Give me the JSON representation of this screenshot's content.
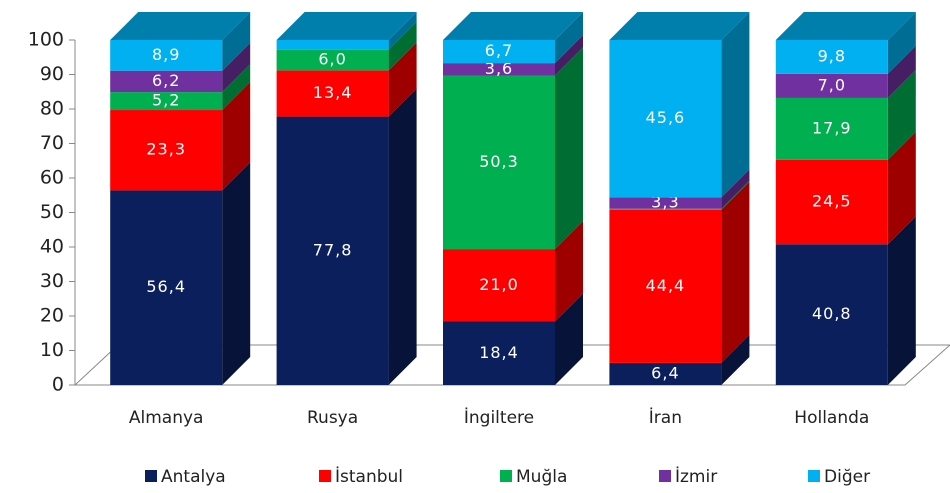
{
  "chart_data": {
    "type": "bar3d_stacked",
    "categories": [
      "Almanya",
      "Rusya",
      "İngiltere",
      "İran",
      "Hollanda"
    ],
    "series": [
      {
        "name": "Antalya",
        "color": "#0b1f5c",
        "values": [
          56.4,
          77.8,
          18.4,
          6.4,
          40.8
        ],
        "value_labels": [
          "56,4",
          "77,8",
          "18,4",
          "6,4",
          "40,8"
        ]
      },
      {
        "name": "İstanbul",
        "color": "#ff0000",
        "values": [
          23.3,
          13.4,
          21.0,
          44.4,
          24.5
        ],
        "value_labels": [
          "23,3",
          "13,4",
          "21,0",
          "44,4",
          "24,5"
        ]
      },
      {
        "name": "Muğla",
        "color": "#00b050",
        "values": [
          5.2,
          6.0,
          50.3,
          0.3,
          17.9
        ],
        "value_labels": [
          "5,2",
          "6,0",
          "50,3",
          null,
          "17,9"
        ]
      },
      {
        "name": "İzmir",
        "color": "#7030a0",
        "values": [
          6.2,
          0,
          3.6,
          3.3,
          7.0
        ],
        "value_labels": [
          "6,2",
          null,
          "3,6",
          "3,3",
          "7,0"
        ]
      },
      {
        "name": "Diğer",
        "color": "#00b0f0",
        "values": [
          8.9,
          2.8,
          6.7,
          45.6,
          9.8
        ],
        "value_labels": [
          "8,9",
          null,
          "6,7",
          "45,6",
          "9,8"
        ]
      }
    ],
    "ylim": [
      0,
      100
    ],
    "yticks": [
      0,
      10,
      20,
      30,
      40,
      50,
      60,
      70,
      80,
      90,
      100
    ],
    "legend": "bottom"
  }
}
